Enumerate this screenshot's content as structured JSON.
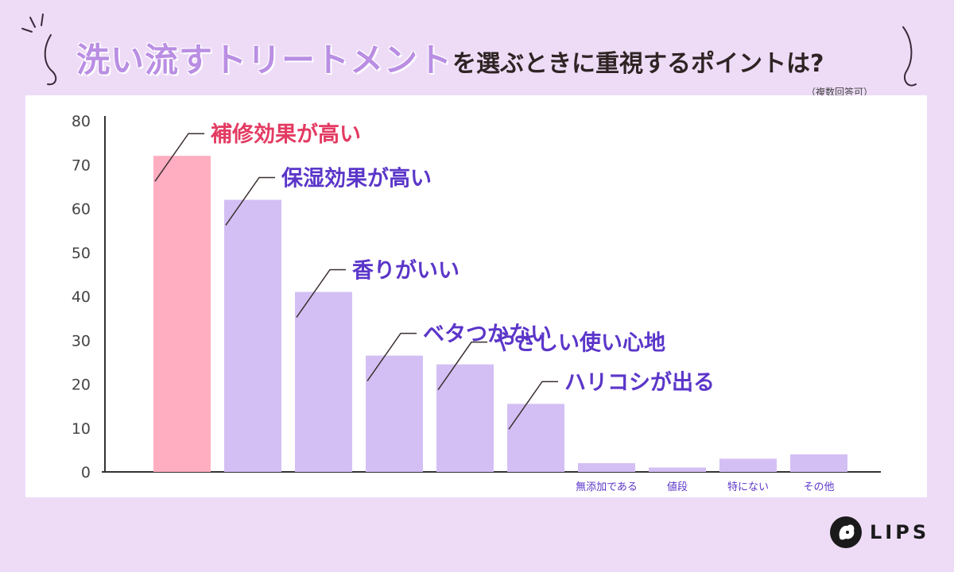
{
  "header": {
    "title_accent": "洗い流すトリートメント",
    "title_rest": "を選ぶときに重視するポイントは?",
    "note": "（複数回答可）"
  },
  "brand": {
    "name": "LIPS"
  },
  "colors": {
    "background": "#eedcf7",
    "highlight_bar": "#ffadc0",
    "bar": "#d4bff4",
    "highlight_label": "#e33b62",
    "label": "#5b36c9",
    "axis": "#333333"
  },
  "chart_data": {
    "type": "bar",
    "categories": [
      "補修効果が高い",
      "保湿効果が高い",
      "香りがいい",
      "ベタつかない",
      "やさしい使い心地",
      "ハリコシが出る",
      "無添加である",
      "値段",
      "特にない",
      "その他"
    ],
    "values": [
      72,
      62,
      41,
      26.5,
      24.5,
      15.5,
      2,
      1,
      3,
      4
    ],
    "highlight_index": 0,
    "ylim": [
      0,
      80
    ],
    "yticks": [
      0,
      10,
      20,
      30,
      40,
      50,
      60,
      70,
      80
    ],
    "grid": false,
    "label_style": [
      "callout",
      "callout",
      "callout",
      "callout",
      "callout",
      "callout",
      "axis",
      "axis",
      "axis",
      "axis"
    ]
  }
}
